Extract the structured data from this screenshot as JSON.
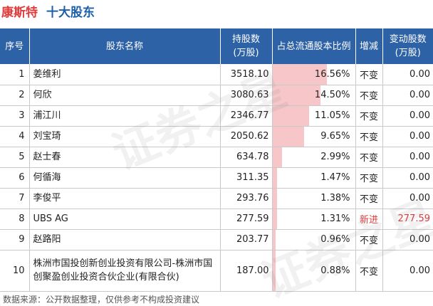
{
  "header": {
    "stock_name": "康斯特",
    "subtitle": "十大股东"
  },
  "table": {
    "columns": {
      "index": "序号",
      "name": "股东名称",
      "shares_line1": "持股数",
      "shares_line2": "(万股)",
      "ratio": "占总流通股本比例",
      "change": "增减",
      "delta_line1": "变动股数",
      "delta_line2": "(万股)"
    },
    "rows": [
      {
        "index": "1",
        "name": "姜维利",
        "shares": "3518.10",
        "ratio": "16.56%",
        "ratio_value": 16.56,
        "change": "不变",
        "delta": "0.00",
        "is_new": false
      },
      {
        "index": "2",
        "name": "何欣",
        "shares": "3080.63",
        "ratio": "14.50%",
        "ratio_value": 14.5,
        "change": "不变",
        "delta": "0.00",
        "is_new": false
      },
      {
        "index": "3",
        "name": "浦江川",
        "shares": "2346.77",
        "ratio": "11.05%",
        "ratio_value": 11.05,
        "change": "不变",
        "delta": "0.00",
        "is_new": false
      },
      {
        "index": "4",
        "name": "刘宝琦",
        "shares": "2050.62",
        "ratio": "9.65%",
        "ratio_value": 9.65,
        "change": "不变",
        "delta": "0.00",
        "is_new": false
      },
      {
        "index": "5",
        "name": "赵士春",
        "shares": "634.78",
        "ratio": "2.99%",
        "ratio_value": 2.99,
        "change": "不变",
        "delta": "0.00",
        "is_new": false
      },
      {
        "index": "6",
        "name": "何循海",
        "shares": "311.35",
        "ratio": "1.47%",
        "ratio_value": 1.47,
        "change": "不变",
        "delta": "0.00",
        "is_new": false
      },
      {
        "index": "7",
        "name": "李俊平",
        "shares": "293.76",
        "ratio": "1.38%",
        "ratio_value": 1.38,
        "change": "不变",
        "delta": "0.00",
        "is_new": false
      },
      {
        "index": "8",
        "name": "UBS AG",
        "shares": "277.59",
        "ratio": "1.31%",
        "ratio_value": 1.31,
        "change": "新进",
        "delta": "277.59",
        "is_new": true
      },
      {
        "index": "9",
        "name": "赵路阳",
        "shares": "203.77",
        "ratio": "0.96%",
        "ratio_value": 0.96,
        "change": "不变",
        "delta": "0.00",
        "is_new": false
      },
      {
        "index": "10",
        "name": "株洲市国投创新创业投资有限公司-株洲市国创聚盈创业投资合伙企业(有限合伙)",
        "shares": "187.00",
        "ratio": "0.88%",
        "ratio_value": 0.88,
        "change": "不变",
        "delta": "0.00",
        "is_new": false
      }
    ]
  },
  "footnote": "数据来源：公开数据整理，仅供参考不构成投资建议",
  "colors": {
    "title_red": "#e03a3a",
    "title_blue": "#1d5fa8",
    "header_bg": "#2e62a6",
    "bar_pink": "#f7c6c9"
  }
}
